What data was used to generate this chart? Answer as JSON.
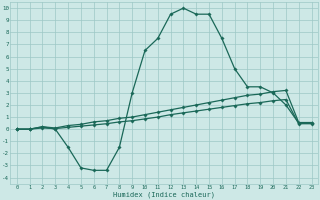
{
  "xlabel": "Humidex (Indice chaleur)",
  "bg_color": "#cde8e6",
  "grid_color": "#9dc8c6",
  "line_color": "#1a6858",
  "xlim": [
    -0.5,
    23.5
  ],
  "ylim": [
    -4.5,
    10.5
  ],
  "xticks": [
    0,
    1,
    2,
    3,
    4,
    5,
    6,
    7,
    8,
    9,
    10,
    11,
    12,
    13,
    14,
    15,
    16,
    17,
    18,
    19,
    20,
    21,
    22,
    23
  ],
  "yticks": [
    -4,
    -3,
    -2,
    -1,
    0,
    1,
    2,
    3,
    4,
    5,
    6,
    7,
    8,
    9,
    10
  ],
  "series": [
    {
      "x": [
        0,
        1,
        2,
        3,
        4,
        5,
        6,
        7,
        8,
        9,
        10,
        11,
        12,
        13,
        14,
        15,
        16,
        17,
        18,
        19,
        20,
        21,
        22,
        23
      ],
      "y": [
        0,
        0,
        0.2,
        0,
        -1.5,
        -3.2,
        -3.4,
        -3.4,
        -1.5,
        3.0,
        6.5,
        7.5,
        9.5,
        10.0,
        9.5,
        9.5,
        7.5,
        5.0,
        3.5,
        3.5,
        3.0,
        2.0,
        0.5,
        0.5
      ]
    },
    {
      "x": [
        0,
        1,
        2,
        3,
        4,
        5,
        6,
        7,
        8,
        9,
        10,
        11,
        12,
        13,
        14,
        15,
        16,
        17,
        18,
        19,
        20,
        21,
        22,
        23
      ],
      "y": [
        0,
        0,
        0.2,
        0.1,
        0.3,
        0.4,
        0.6,
        0.7,
        0.9,
        1.0,
        1.2,
        1.4,
        1.6,
        1.8,
        2.0,
        2.2,
        2.4,
        2.6,
        2.8,
        2.9,
        3.1,
        3.2,
        0.55,
        0.55
      ]
    },
    {
      "x": [
        0,
        1,
        2,
        3,
        4,
        5,
        6,
        7,
        8,
        9,
        10,
        11,
        12,
        13,
        14,
        15,
        16,
        17,
        18,
        19,
        20,
        21,
        22,
        23
      ],
      "y": [
        0,
        0,
        0.1,
        0.05,
        0.15,
        0.25,
        0.35,
        0.45,
        0.6,
        0.7,
        0.85,
        1.0,
        1.2,
        1.35,
        1.5,
        1.65,
        1.8,
        1.95,
        2.1,
        2.2,
        2.35,
        2.45,
        0.45,
        0.45
      ]
    }
  ]
}
